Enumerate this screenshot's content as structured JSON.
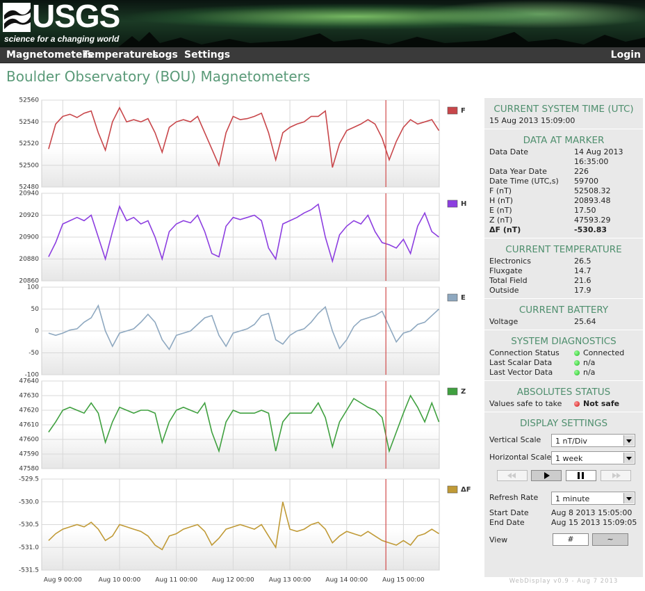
{
  "header": {
    "logo": "USGS",
    "tagline": "science for a changing world",
    "nav": [
      "Magnetometers",
      "Temperatures",
      "Logs",
      "Settings"
    ],
    "login": "Login"
  },
  "page_title": "Boulder Observatory (BOU) Magnetometers",
  "chart_data": {
    "type": "line",
    "x": [
      "Aug 8 18:00",
      "Aug 8 21:00",
      "Aug 9 00:00",
      "Aug 9 03:00",
      "Aug 9 06:00",
      "Aug 9 09:00",
      "Aug 9 12:00",
      "Aug 9 15:00",
      "Aug 9 18:00",
      "Aug 9 21:00",
      "Aug 10 00:00",
      "Aug 10 03:00",
      "Aug 10 06:00",
      "Aug 10 09:00",
      "Aug 10 12:00",
      "Aug 10 15:00",
      "Aug 10 18:00",
      "Aug 10 21:00",
      "Aug 11 00:00",
      "Aug 11 03:00",
      "Aug 11 06:00",
      "Aug 11 09:00",
      "Aug 11 12:00",
      "Aug 11 15:00",
      "Aug 11 18:00",
      "Aug 11 21:00",
      "Aug 12 00:00",
      "Aug 12 03:00",
      "Aug 12 06:00",
      "Aug 12 09:00",
      "Aug 12 12:00",
      "Aug 12 15:00",
      "Aug 12 18:00",
      "Aug 12 21:00",
      "Aug 13 00:00",
      "Aug 13 03:00",
      "Aug 13 06:00",
      "Aug 13 09:00",
      "Aug 13 12:00",
      "Aug 13 15:00",
      "Aug 13 18:00",
      "Aug 13 21:00",
      "Aug 14 00:00",
      "Aug 14 03:00",
      "Aug 14 06:00",
      "Aug 14 09:00",
      "Aug 14 12:00",
      "Aug 14 15:00",
      "Aug 14 18:00",
      "Aug 14 21:00",
      "Aug 15 00:00",
      "Aug 15 03:00",
      "Aug 15 06:00",
      "Aug 15 09:00",
      "Aug 15 12:00",
      "Aug 15 15:00"
    ],
    "xlim": [
      "Aug 8 15:05",
      "Aug 15 15:09"
    ],
    "xticks": [
      "Aug 9 00:00",
      "Aug 10 00:00",
      "Aug 11 00:00",
      "Aug 12 00:00",
      "Aug 13 00:00",
      "Aug 14 00:00",
      "Aug 15 00:00"
    ],
    "marker": "Aug 14 16:35",
    "marker_color": "#d04a4a",
    "grid": true,
    "series": [
      {
        "name": "F",
        "color": "#c8464a",
        "ylim": [
          52480,
          52560
        ],
        "yticks": [
          52480,
          52500,
          52520,
          52540,
          52560
        ],
        "values": [
          52515,
          52538,
          52545,
          52547,
          52544,
          52548,
          52550,
          52530,
          52514,
          52540,
          52553,
          52540,
          52542,
          52540,
          52543,
          52530,
          52512,
          52535,
          52540,
          52542,
          52540,
          52545,
          52530,
          52515,
          52500,
          52530,
          52545,
          52542,
          52543,
          52545,
          52548,
          52530,
          52505,
          52530,
          52535,
          52538,
          52540,
          52545,
          52545,
          52550,
          52498,
          52520,
          52532,
          52535,
          52538,
          52542,
          52538,
          52525,
          52505,
          52522,
          52535,
          52542,
          52538,
          52540,
          52542,
          52532
        ]
      },
      {
        "name": "H",
        "color": "#8c3ee0",
        "ylim": [
          20860,
          20940
        ],
        "yticks": [
          20860,
          20880,
          20900,
          20920,
          20940
        ],
        "values": [
          20882,
          20895,
          20912,
          20915,
          20918,
          20915,
          20920,
          20900,
          20880,
          20905,
          20928,
          20915,
          20918,
          20912,
          20915,
          20900,
          20880,
          20905,
          20912,
          20915,
          20913,
          20920,
          20905,
          20885,
          20882,
          20910,
          20918,
          20916,
          20918,
          20920,
          20915,
          20890,
          20880,
          20912,
          20915,
          20918,
          20922,
          20925,
          20930,
          20900,
          20878,
          20902,
          20910,
          20915,
          20912,
          20920,
          20905,
          20895,
          20893,
          20890,
          20898,
          20885,
          20910,
          20922,
          20905,
          20900
        ]
      },
      {
        "name": "E",
        "color": "#8ea8c0",
        "ylim": [
          -100,
          100
        ],
        "yticks": [
          -100,
          -50,
          0,
          50,
          100
        ],
        "values": [
          -5,
          -10,
          -5,
          2,
          5,
          20,
          30,
          58,
          0,
          -35,
          -5,
          0,
          5,
          20,
          38,
          20,
          -20,
          -42,
          -10,
          -5,
          0,
          15,
          30,
          35,
          -10,
          -35,
          -5,
          0,
          5,
          15,
          35,
          40,
          -20,
          -30,
          -10,
          0,
          5,
          20,
          40,
          55,
          0,
          -40,
          -20,
          10,
          25,
          30,
          35,
          45,
          10,
          -25,
          -5,
          0,
          15,
          20,
          35,
          50
        ]
      },
      {
        "name": "Z",
        "color": "#3fa03f",
        "ylim": [
          47580,
          47640
        ],
        "yticks": [
          47580,
          47590,
          47600,
          47610,
          47620,
          47630,
          47640
        ],
        "values": [
          47605,
          47612,
          47620,
          47622,
          47620,
          47618,
          47625,
          47618,
          47598,
          47612,
          47622,
          47620,
          47618,
          47620,
          47620,
          47618,
          47598,
          47612,
          47620,
          47622,
          47620,
          47618,
          47625,
          47605,
          47592,
          47612,
          47620,
          47618,
          47618,
          47618,
          47620,
          47618,
          47592,
          47612,
          47618,
          47618,
          47618,
          47618,
          47625,
          47615,
          47595,
          47612,
          47620,
          47628,
          47625,
          47622,
          47620,
          47615,
          47592,
          47605,
          47618,
          47630,
          47622,
          47612,
          47625,
          47612
        ]
      },
      {
        "name": "ΔF",
        "color": "#c09a36",
        "ylim": [
          -531.5,
          -529.5
        ],
        "yticks": [
          -531.5,
          {
            "value": -531,
            "label": "-531.0"
          },
          -530.5,
          {
            "value": -530,
            "label": "-530.0"
          },
          -529.5
        ],
        "values": [
          -530.85,
          -530.7,
          -530.6,
          -530.55,
          -530.5,
          -530.55,
          -530.45,
          -530.6,
          -530.85,
          -530.75,
          -530.5,
          -530.55,
          -530.6,
          -530.65,
          -530.75,
          -530.95,
          -531.05,
          -530.75,
          -530.7,
          -530.6,
          -530.55,
          -530.5,
          -530.65,
          -530.95,
          -530.8,
          -530.6,
          -530.55,
          -530.5,
          -530.55,
          -530.6,
          -530.5,
          -530.75,
          -531.0,
          -530.0,
          -530.6,
          -530.65,
          -530.6,
          -530.5,
          -530.45,
          -530.6,
          -530.9,
          -530.75,
          -530.65,
          -530.7,
          -530.75,
          -530.65,
          -530.75,
          -530.85,
          -530.9,
          -530.95,
          -530.85,
          -530.95,
          -530.75,
          -530.7,
          -530.6,
          -530.7
        ]
      }
    ]
  },
  "sidebar": {
    "sections": [
      {
        "title": "CURRENT SYSTEM TIME (UTC)",
        "rows": [
          [
            "15 Aug 2013 15:09:00"
          ]
        ]
      },
      {
        "title": "DATA AT MARKER",
        "rows": [
          [
            "Data Date",
            "14 Aug 2013",
            "16:35:00"
          ],
          [
            "Data Year Date",
            "226"
          ],
          [
            "Date Time (UTC,s)",
            "59700"
          ],
          [
            "F (nT)",
            "52508.32"
          ],
          [
            "H (nT)",
            "20893.48"
          ],
          [
            "E (nT)",
            "17.50"
          ],
          [
            "Z (nT)",
            "47593.29"
          ],
          [
            "ΔF (nT)",
            "-530.83"
          ]
        ]
      },
      {
        "title": "CURRENT TEMPERATURE",
        "rows": [
          [
            "Electronics",
            "26.5"
          ],
          [
            "Fluxgate",
            "14.7"
          ],
          [
            "Total Field",
            "21.6"
          ],
          [
            "Outside",
            "17.9"
          ]
        ]
      },
      {
        "title": "CURRENT BATTERY",
        "rows": [
          [
            "Voltage",
            "25.64"
          ]
        ]
      },
      {
        "title": "SYSTEM DIAGNOSTICS",
        "rows": [
          [
            "Connection Status",
            "Connected"
          ],
          [
            "Last Scalar Data",
            "n/a"
          ],
          [
            "Last Vector Data",
            "n/a"
          ]
        ]
      },
      {
        "title": "ABSOLUTES STATUS",
        "rows": [
          [
            "Values safe to take",
            "Not safe"
          ]
        ]
      }
    ],
    "display": {
      "title": "DISPLAY SETTINGS",
      "vertical_scale": {
        "label": "Vertical Scale",
        "value": "1 nT/Div"
      },
      "horizontal_scale": {
        "label": "Horizontal Scale",
        "value": "1 week"
      },
      "refresh": {
        "label": "Refresh Rate",
        "value": "1 minute"
      },
      "start": {
        "label": "Start Date",
        "value": "Aug 8 2013 15:05:00"
      },
      "end": {
        "label": "End Date",
        "value": "Aug 15 2013 15:09:05"
      },
      "view": {
        "label": "View",
        "buttons": [
          "#",
          "~"
        ]
      }
    }
  },
  "footer": "WebDisplay v0.9 - Aug 7 2013"
}
